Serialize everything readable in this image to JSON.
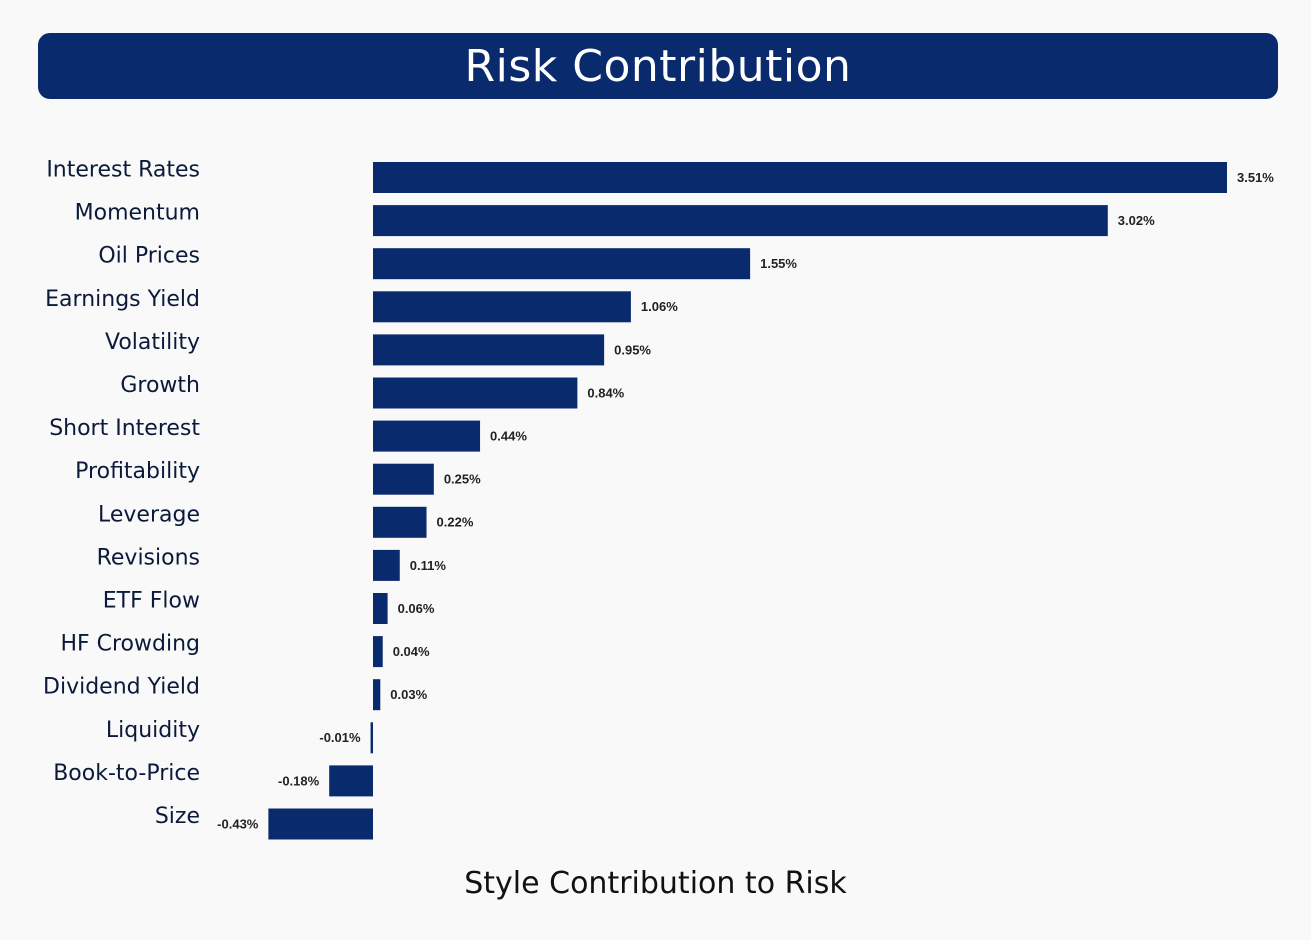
{
  "title": "Risk Contribution",
  "footer": "Style Contribution to Risk",
  "chart_data": {
    "type": "bar",
    "orientation": "horizontal",
    "title": "Risk Contribution",
    "xlabel": "Style Contribution to Risk",
    "ylabel": "",
    "bar_color": "#0a2a6e",
    "categories": [
      "Interest Rates",
      "Momentum",
      "Oil Prices",
      "Earnings Yield",
      "Volatility",
      "Growth",
      "Short Interest",
      "Profitability",
      "Leverage",
      "Revisions",
      "ETF Flow",
      "HF Crowding",
      "Dividend Yield",
      "Liquidity",
      "Book-to-Price",
      "Size"
    ],
    "values": [
      3.51,
      3.02,
      1.55,
      1.06,
      0.95,
      0.84,
      0.44,
      0.25,
      0.22,
      0.11,
      0.06,
      0.04,
      0.03,
      -0.01,
      -0.18,
      -0.43
    ],
    "value_labels": [
      "3.51%",
      "3.02%",
      "1.55%",
      "1.06%",
      "0.95%",
      "0.84%",
      "0.44%",
      "0.25%",
      "0.22%",
      "0.11%",
      "0.06%",
      "0.04%",
      "0.03%",
      "-0.01%",
      "-0.18%",
      "-0.43%"
    ],
    "xlim": [
      -0.43,
      3.51
    ],
    "grid": false,
    "legend": "none"
  }
}
